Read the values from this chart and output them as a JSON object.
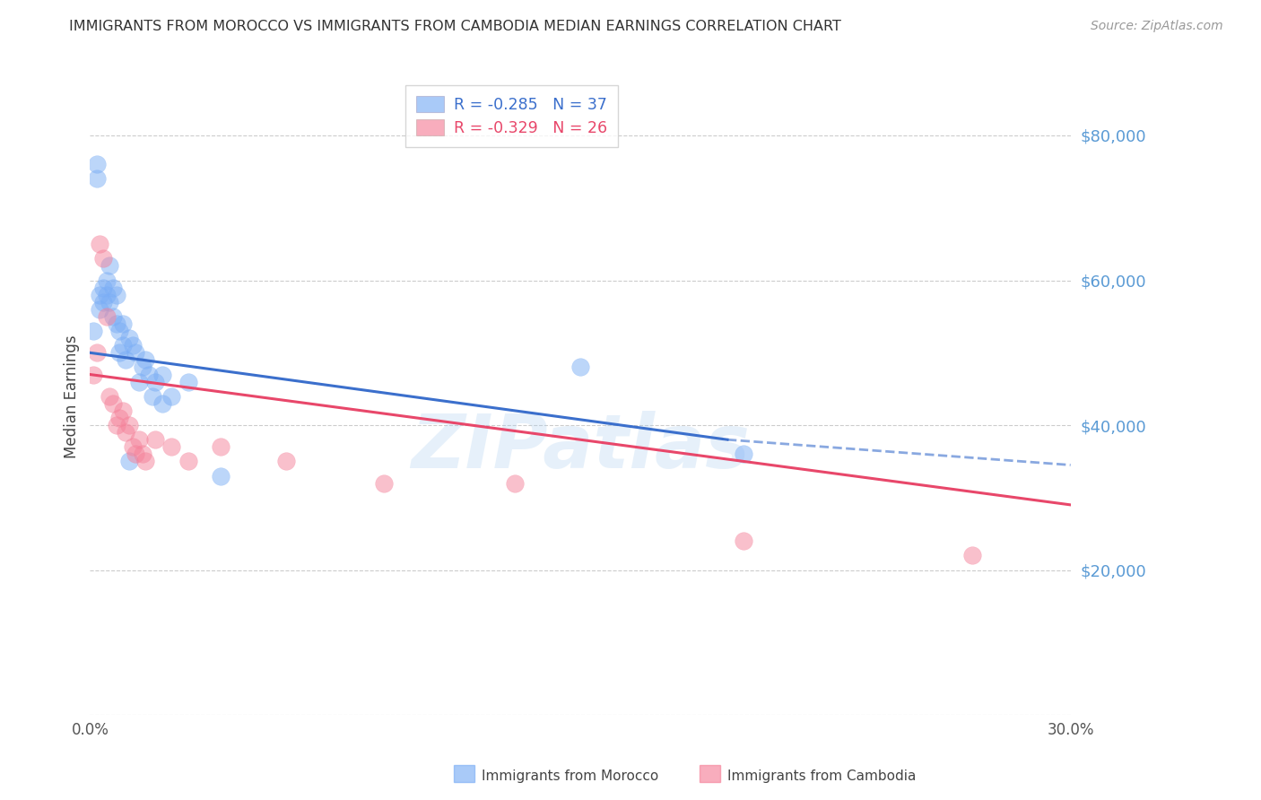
{
  "title": "IMMIGRANTS FROM MOROCCO VS IMMIGRANTS FROM CAMBODIA MEDIAN EARNINGS CORRELATION CHART",
  "source": "Source: ZipAtlas.com",
  "ylabel": "Median Earnings",
  "ytick_labels": [
    "$20,000",
    "$40,000",
    "$60,000",
    "$80,000"
  ],
  "ytick_values": [
    20000,
    40000,
    60000,
    80000
  ],
  "ylim": [
    0,
    88000
  ],
  "xlim": [
    0.0,
    0.3
  ],
  "morocco_color": "#7BAEF5",
  "cambodia_color": "#F5829A",
  "morocco_trend_color": "#3B6FCC",
  "cambodia_trend_color": "#E8476A",
  "background_color": "#FFFFFF",
  "grid_color": "#CCCCCC",
  "title_color": "#333333",
  "axis_label_color": "#444444",
  "right_tick_color": "#5B9BD5",
  "morocco_x": [
    0.001,
    0.002,
    0.002,
    0.003,
    0.003,
    0.004,
    0.004,
    0.005,
    0.005,
    0.006,
    0.006,
    0.007,
    0.007,
    0.008,
    0.008,
    0.009,
    0.009,
    0.01,
    0.01,
    0.011,
    0.012,
    0.013,
    0.014,
    0.015,
    0.016,
    0.017,
    0.018,
    0.019,
    0.02,
    0.022,
    0.025,
    0.03,
    0.04,
    0.15,
    0.2,
    0.022,
    0.012
  ],
  "morocco_y": [
    53000,
    74000,
    76000,
    56000,
    58000,
    57000,
    59000,
    60000,
    58000,
    62000,
    57000,
    59000,
    55000,
    58000,
    54000,
    53000,
    50000,
    54000,
    51000,
    49000,
    52000,
    51000,
    50000,
    46000,
    48000,
    49000,
    47000,
    44000,
    46000,
    47000,
    44000,
    46000,
    33000,
    48000,
    36000,
    43000,
    35000
  ],
  "cambodia_x": [
    0.001,
    0.002,
    0.003,
    0.004,
    0.005,
    0.006,
    0.007,
    0.008,
    0.009,
    0.01,
    0.011,
    0.012,
    0.013,
    0.014,
    0.015,
    0.016,
    0.017,
    0.02,
    0.025,
    0.03,
    0.04,
    0.06,
    0.09,
    0.13,
    0.2,
    0.27
  ],
  "cambodia_y": [
    47000,
    50000,
    65000,
    63000,
    55000,
    44000,
    43000,
    40000,
    41000,
    42000,
    39000,
    40000,
    37000,
    36000,
    38000,
    36000,
    35000,
    38000,
    37000,
    35000,
    37000,
    35000,
    32000,
    32000,
    24000,
    22000
  ],
  "morocco_trend_solid_x0": 0.0,
  "morocco_trend_solid_x1": 0.195,
  "morocco_trend_y0": 50000,
  "morocco_trend_y1": 38000,
  "morocco_trend_dashed_x0": 0.195,
  "morocco_trend_dashed_x1": 0.3,
  "morocco_trend_dashed_y0": 38000,
  "morocco_trend_dashed_y1": 34500,
  "cambodia_trend_x0": 0.0,
  "cambodia_trend_x1": 0.3,
  "cambodia_trend_y0": 47000,
  "cambodia_trend_y1": 29000,
  "watermark": "ZIPatlas",
  "legend_label_morocco": "Immigrants from Morocco",
  "legend_label_cambodia": "Immigrants from Cambodia",
  "legend_R_morocco": "-0.285",
  "legend_N_morocco": "37",
  "legend_R_cambodia": "-0.329",
  "legend_N_cambodia": "26"
}
